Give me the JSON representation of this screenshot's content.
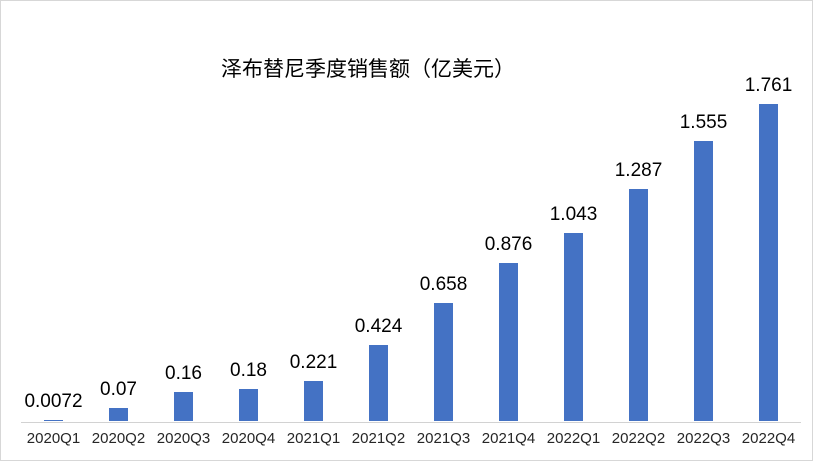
{
  "chart_data": {
    "type": "bar",
    "title": "泽布替尼季度销售额（亿美元）",
    "categories": [
      "2020Q1",
      "2020Q2",
      "2020Q3",
      "2020Q4",
      "2021Q1",
      "2021Q2",
      "2021Q3",
      "2021Q4",
      "2022Q1",
      "2022Q2",
      "2022Q3",
      "2022Q4"
    ],
    "values": [
      0.0072,
      0.07,
      0.16,
      0.18,
      0.221,
      0.424,
      0.658,
      0.876,
      1.043,
      1.287,
      1.555,
      1.761
    ],
    "value_labels": [
      "0.0072",
      "0.07",
      "0.16",
      "0.18",
      "0.221",
      "0.424",
      "0.658",
      "0.876",
      "1.043",
      "1.287",
      "1.555",
      "1.761"
    ],
    "xlabel": "",
    "ylabel": "",
    "ylim": [
      0,
      1.8
    ],
    "grid": false,
    "legend": "none",
    "data_label_position": "outside-end",
    "colors": {
      "bar": "#4472c4",
      "axis_line": "#d2d2d2",
      "data_label": "#000000",
      "tick_label": "#262626",
      "title": "#000000",
      "background": "#ffffff",
      "border": "#d7d7d7"
    }
  }
}
